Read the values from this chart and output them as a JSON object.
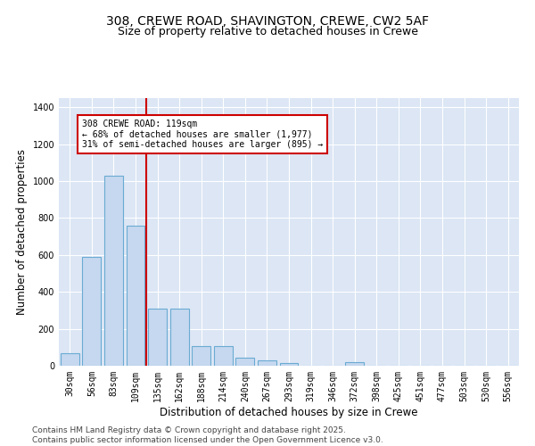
{
  "title_line1": "308, CREWE ROAD, SHAVINGTON, CREWE, CW2 5AF",
  "title_line2": "Size of property relative to detached houses in Crewe",
  "xlabel": "Distribution of detached houses by size in Crewe",
  "ylabel": "Number of detached properties",
  "categories": [
    "30sqm",
    "56sqm",
    "83sqm",
    "109sqm",
    "135sqm",
    "162sqm",
    "188sqm",
    "214sqm",
    "240sqm",
    "267sqm",
    "293sqm",
    "319sqm",
    "346sqm",
    "372sqm",
    "398sqm",
    "425sqm",
    "451sqm",
    "477sqm",
    "503sqm",
    "530sqm",
    "556sqm"
  ],
  "values": [
    70,
    590,
    1030,
    760,
    310,
    310,
    105,
    105,
    45,
    30,
    15,
    0,
    0,
    20,
    0,
    0,
    0,
    0,
    0,
    0,
    0
  ],
  "bar_color": "#c5d8ef",
  "bar_edge_color": "#6aabd2",
  "vline_color": "#cc0000",
  "annotation_text": "308 CREWE ROAD: 119sqm\n← 68% of detached houses are smaller (1,977)\n31% of semi-detached houses are larger (895) →",
  "annotation_box_color": "#cc0000",
  "annotation_facecolor": "white",
  "ylim": [
    0,
    1450
  ],
  "yticks": [
    0,
    200,
    400,
    600,
    800,
    1000,
    1200,
    1400
  ],
  "footer_text": "Contains HM Land Registry data © Crown copyright and database right 2025.\nContains public sector information licensed under the Open Government Licence v3.0.",
  "plot_bg_color": "#dce6f5",
  "title_fontsize": 10,
  "subtitle_fontsize": 9,
  "tick_fontsize": 7,
  "label_fontsize": 8.5,
  "footer_fontsize": 6.5
}
